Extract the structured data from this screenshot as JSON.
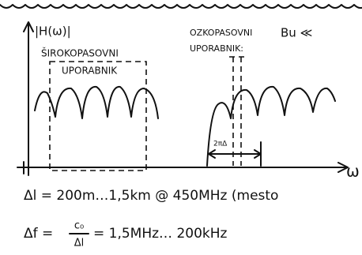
{
  "axis": {
    "y_label": "|H(ω)|",
    "x_label": "ω"
  },
  "wideband": {
    "line1": "ŠIROKOPASOVNI",
    "line2": "UPORABNIK"
  },
  "narrowband": {
    "line1": "OZKOPASOVNI",
    "line2": "UPORABNIK:",
    "condition": "Bu ≪"
  },
  "spacing_label": "2πΔ",
  "equations": {
    "delta_l": "Δl = 200m…1,5km @ 450MHz (mesto",
    "delta_f_lhs": "Δf =",
    "delta_f_num": "c₀",
    "delta_f_den": "Δl",
    "delta_f_rhs": "= 1,5MHz… 200kHz"
  }
}
